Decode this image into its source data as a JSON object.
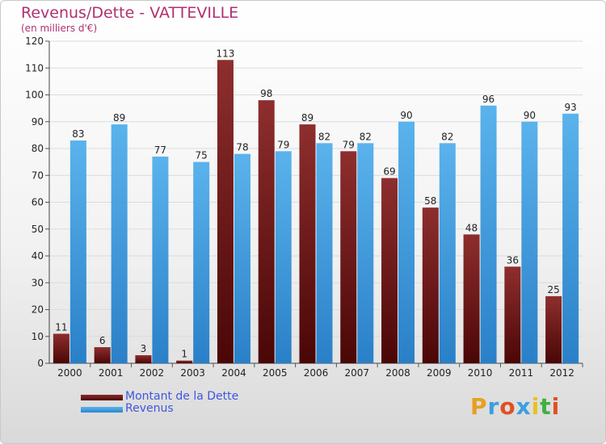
{
  "title": "Revenus/Dette - VATTEVILLE",
  "subtitle": "(en milliers d'€)",
  "legend": {
    "debt_label": "Montant de la Dette",
    "revenue_label": "Revenus"
  },
  "logo": "Proxiti",
  "colors": {
    "debt": "#7a1a1a",
    "revenue": "#3b9ee3",
    "title": "#b03070",
    "legend_text": "#3f56e0"
  },
  "chart_data": {
    "type": "bar",
    "title": "Revenus/Dette - VATTEVILLE",
    "ylabel": "(en milliers d'€)",
    "xlabel": "",
    "ylim": [
      0,
      120
    ],
    "yticks": [
      0,
      10,
      20,
      30,
      40,
      50,
      60,
      70,
      80,
      90,
      100,
      110,
      120
    ],
    "categories": [
      "2000",
      "2001",
      "2002",
      "2003",
      "2004",
      "2005",
      "2006",
      "2007",
      "2008",
      "2009",
      "2010",
      "2011",
      "2012"
    ],
    "series": [
      {
        "name": "Montant de la Dette",
        "values": [
          11,
          6,
          3,
          1,
          113,
          98,
          89,
          79,
          69,
          58,
          48,
          36,
          25
        ]
      },
      {
        "name": "Revenus",
        "values": [
          83,
          89,
          77,
          75,
          78,
          79,
          82,
          82,
          90,
          82,
          96,
          90,
          93
        ]
      }
    ]
  }
}
